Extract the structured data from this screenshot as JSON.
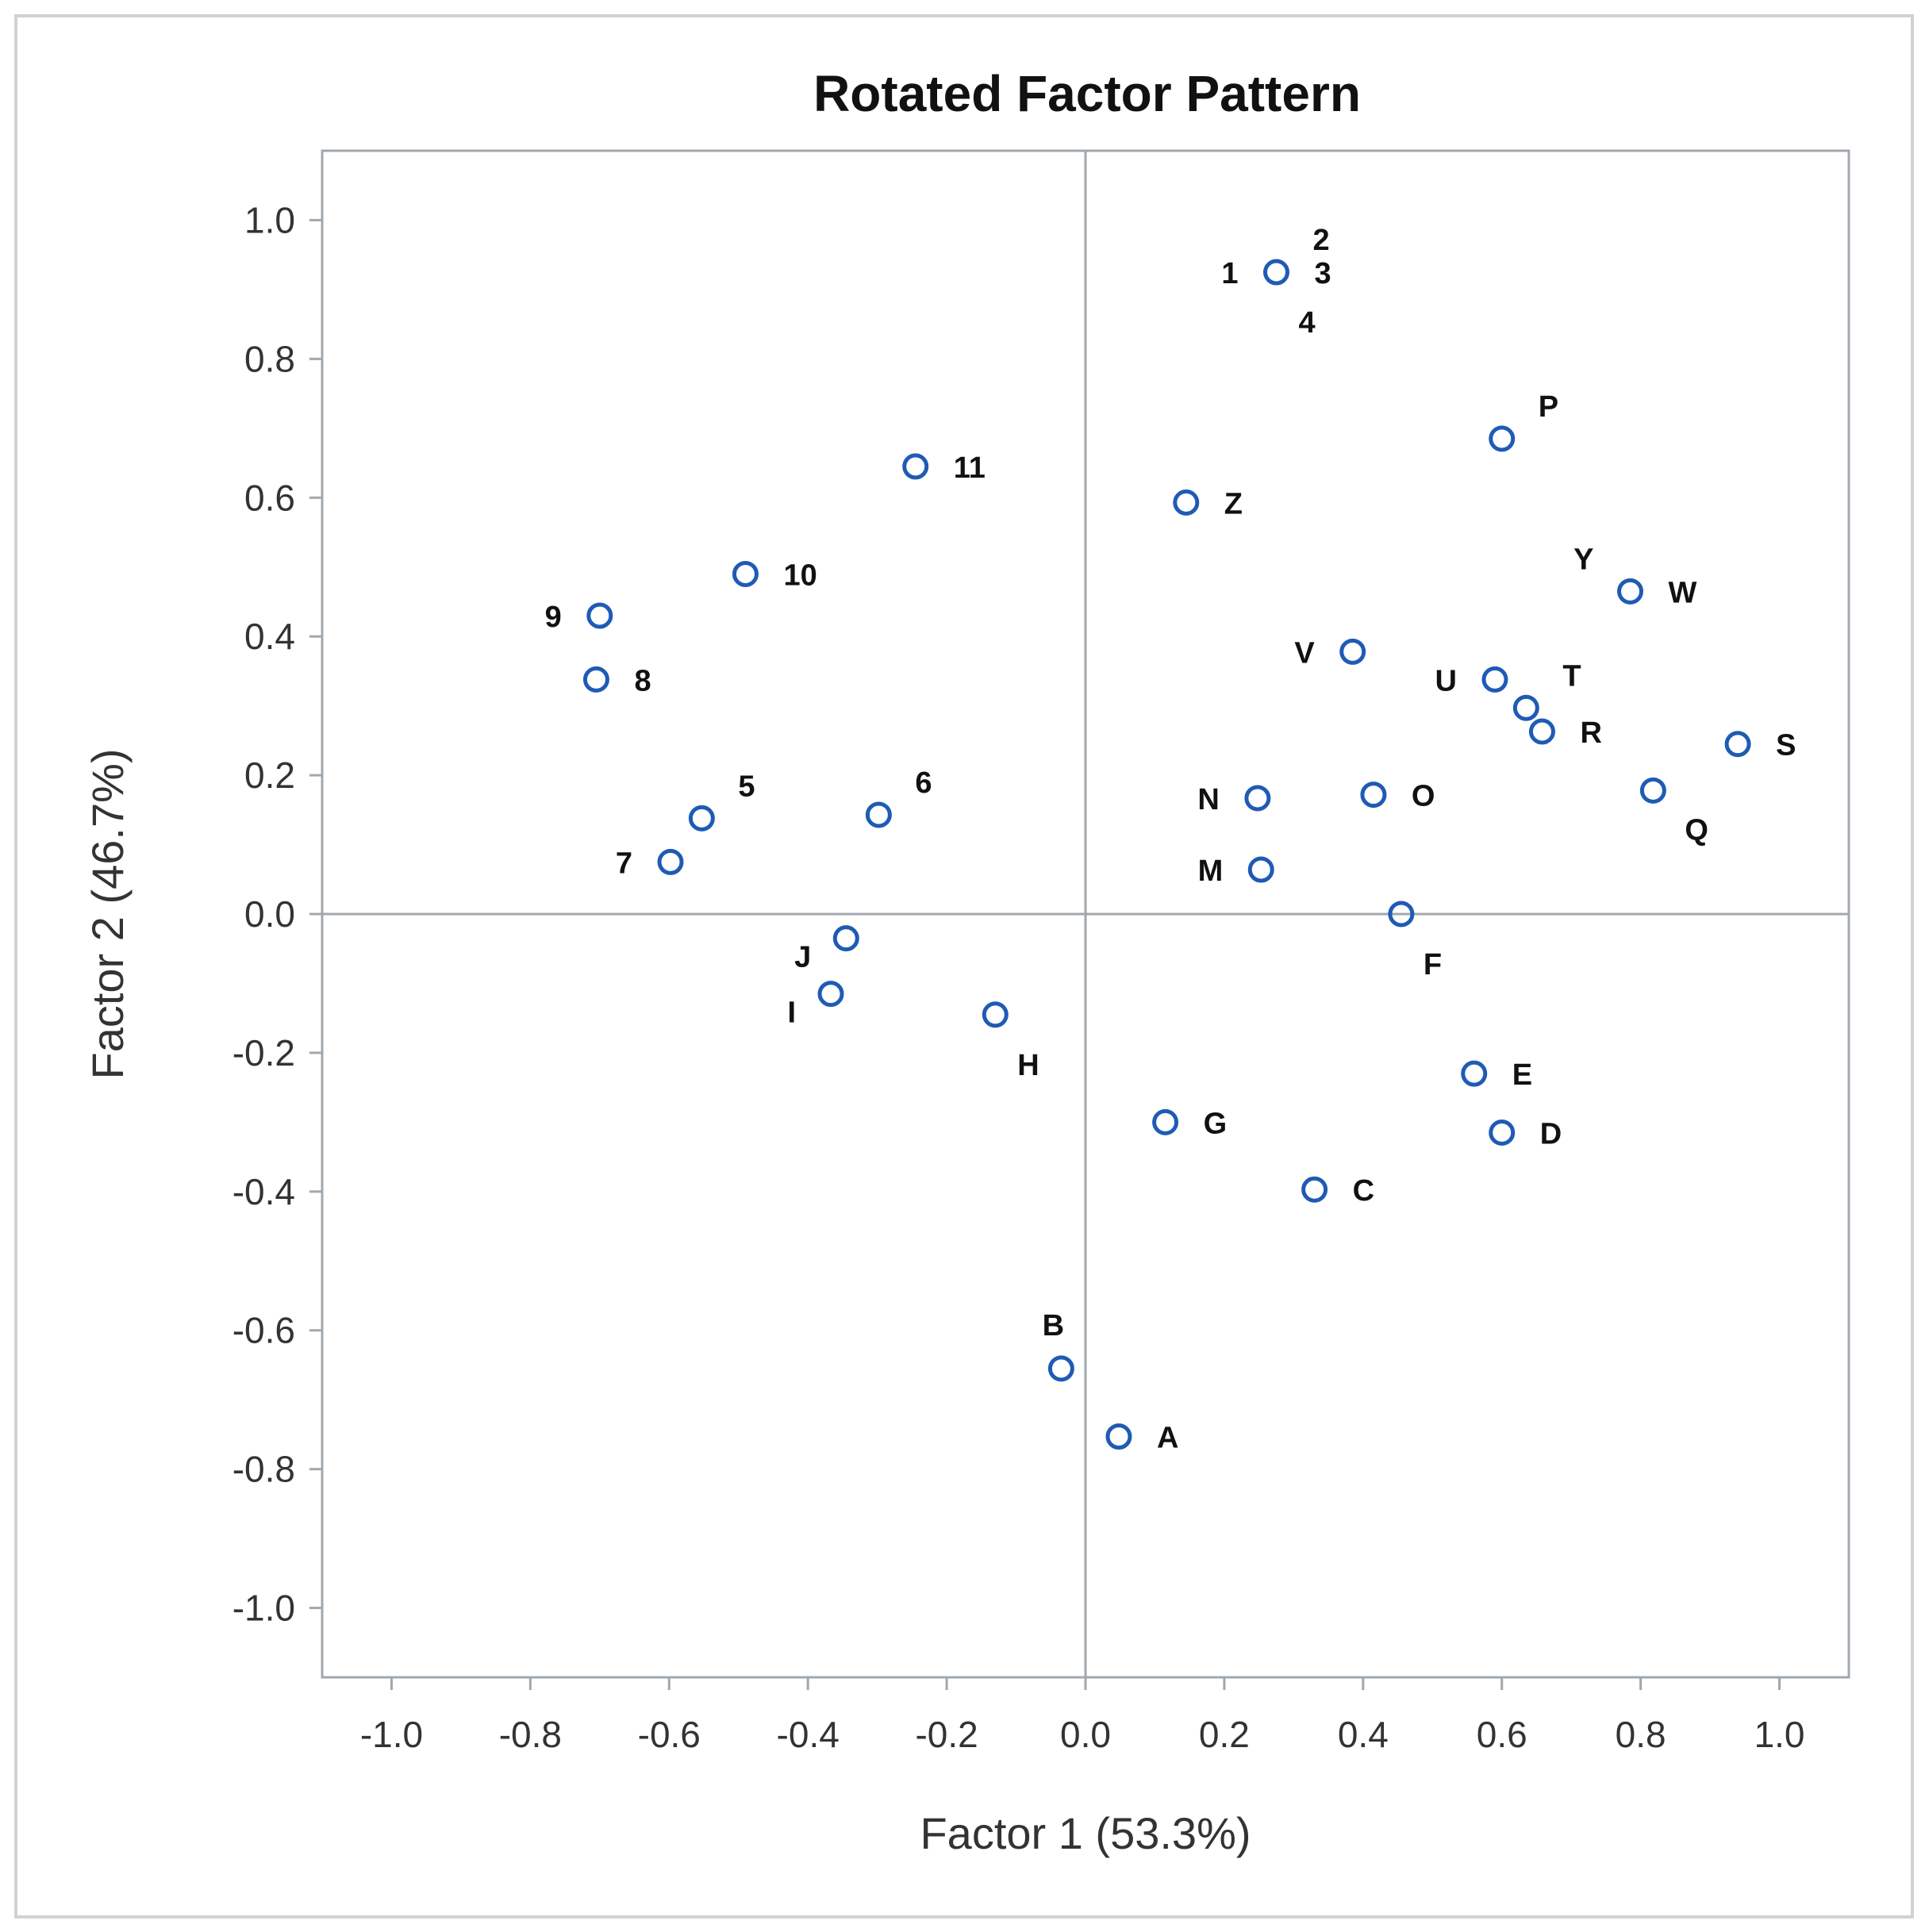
{
  "chart_data": {
    "type": "scatter",
    "title": "Rotated Factor Pattern",
    "xlabel": "Factor 1 (53.3%)",
    "ylabel": "Factor 2 (46.7%)",
    "xlim": [
      -1.1,
      1.1
    ],
    "ylim": [
      -1.1,
      1.1
    ],
    "xticks": [
      -1.0,
      -0.8,
      -0.6,
      -0.4,
      -0.2,
      0.0,
      0.2,
      0.4,
      0.6,
      0.8,
      1.0
    ],
    "yticks": [
      -1.0,
      -0.8,
      -0.6,
      -0.4,
      -0.2,
      0.0,
      0.2,
      0.4,
      0.6,
      0.8,
      1.0
    ],
    "xtick_labels": [
      "-1.0",
      "-0.8",
      "-0.6",
      "-0.4",
      "-0.2",
      "0.0",
      "0.2",
      "0.4",
      "0.6",
      "0.8",
      "1.0"
    ],
    "ytick_labels": [
      "-1.0",
      "-0.8",
      "-0.6",
      "-0.4",
      "-0.2",
      "0.0",
      "0.2",
      "0.4",
      "0.6",
      "0.8",
      "1.0"
    ],
    "reference_lines": {
      "x": 0,
      "y": 0
    },
    "grid": false,
    "marker_color": "#1f5bb5",
    "axis_color": "#a0a8ae",
    "points": [
      {
        "label": "1",
        "x": 0.275,
        "y": 0.925,
        "label_pos": "left"
      },
      {
        "label": "2",
        "x": 0.275,
        "y": 0.925,
        "label_pos": "upper-right"
      },
      {
        "label": "3",
        "x": 0.275,
        "y": 0.925,
        "label_pos": "right"
      },
      {
        "label": "4",
        "x": 0.275,
        "y": 0.925,
        "label_pos": "below"
      },
      {
        "label": "P",
        "x": 0.6,
        "y": 0.685,
        "label_pos": "upper-right"
      },
      {
        "label": "11",
        "x": -0.245,
        "y": 0.645,
        "label_pos": "right"
      },
      {
        "label": "Z",
        "x": 0.145,
        "y": 0.593,
        "label_pos": "right"
      },
      {
        "label": "10",
        "x": -0.49,
        "y": 0.49,
        "label_pos": "right"
      },
      {
        "label": "Y",
        "x": 0.785,
        "y": 0.465,
        "label_pos": "upper-left"
      },
      {
        "label": "W",
        "x": 0.785,
        "y": 0.465,
        "label_pos": "right"
      },
      {
        "label": "9",
        "x": -0.7,
        "y": 0.43,
        "label_pos": "left"
      },
      {
        "label": "V",
        "x": 0.385,
        "y": 0.378,
        "label_pos": "left"
      },
      {
        "label": "8",
        "x": -0.705,
        "y": 0.338,
        "label_pos": "right"
      },
      {
        "label": "U",
        "x": 0.59,
        "y": 0.338,
        "label_pos": "left"
      },
      {
        "label": "T",
        "x": 0.635,
        "y": 0.297,
        "label_pos": "upper-right"
      },
      {
        "label": "R",
        "x": 0.658,
        "y": 0.263,
        "label_pos": "right"
      },
      {
        "label": "S",
        "x": 0.94,
        "y": 0.245,
        "label_pos": "right"
      },
      {
        "label": "Q",
        "x": 0.818,
        "y": 0.178,
        "label_pos": "lower-right"
      },
      {
        "label": "O",
        "x": 0.415,
        "y": 0.172,
        "label_pos": "right"
      },
      {
        "label": "N",
        "x": 0.248,
        "y": 0.167,
        "label_pos": "left"
      },
      {
        "label": "6",
        "x": -0.298,
        "y": 0.143,
        "label_pos": "upper-right"
      },
      {
        "label": "5",
        "x": -0.553,
        "y": 0.138,
        "label_pos": "upper-right"
      },
      {
        "label": "7",
        "x": -0.598,
        "y": 0.075,
        "label_pos": "left"
      },
      {
        "label": "M",
        "x": 0.253,
        "y": 0.064,
        "label_pos": "left"
      },
      {
        "label": "F",
        "x": 0.455,
        "y": 0.0,
        "label_pos": "below"
      },
      {
        "label": "J",
        "x": -0.345,
        "y": -0.035,
        "label_pos": "lower-left"
      },
      {
        "label": "I",
        "x": -0.367,
        "y": -0.115,
        "label_pos": "lower-left"
      },
      {
        "label": "H",
        "x": -0.13,
        "y": -0.145,
        "label_pos": "below"
      },
      {
        "label": "E",
        "x": 0.56,
        "y": -0.23,
        "label_pos": "right"
      },
      {
        "label": "G",
        "x": 0.115,
        "y": -0.3,
        "label_pos": "right"
      },
      {
        "label": "D",
        "x": 0.6,
        "y": -0.315,
        "label_pos": "right"
      },
      {
        "label": "C",
        "x": 0.33,
        "y": -0.397,
        "label_pos": "right"
      },
      {
        "label": "B",
        "x": -0.035,
        "y": -0.655,
        "label_pos": "above"
      },
      {
        "label": "A",
        "x": 0.048,
        "y": -0.753,
        "label_pos": "right"
      }
    ]
  }
}
